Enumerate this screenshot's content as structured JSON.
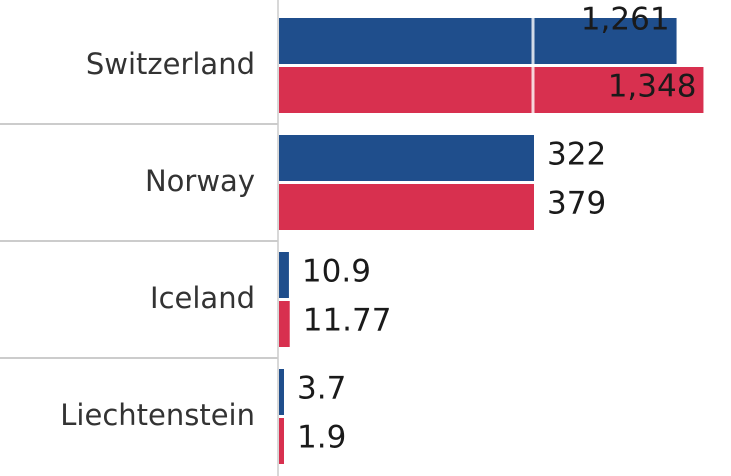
{
  "chart_data": {
    "type": "hbar",
    "categories": [
      "Switzerland",
      "Norway",
      "Iceland",
      "Liechtenstein"
    ],
    "series": [
      {
        "color": "#1f4e8c",
        "values": [
          1261,
          322,
          10.9,
          3.7
        ],
        "value_labels": [
          "1,261",
          "322",
          "10.9",
          "3.7"
        ]
      },
      {
        "color": "#d8304f",
        "values": [
          1348,
          379,
          11.77,
          1.9
        ],
        "value_labels": [
          "1,348",
          "379",
          "11.77",
          "1.9"
        ]
      }
    ],
    "xlim": [
      0,
      1450
    ],
    "xbreak": [
      280,
      800
    ]
  }
}
